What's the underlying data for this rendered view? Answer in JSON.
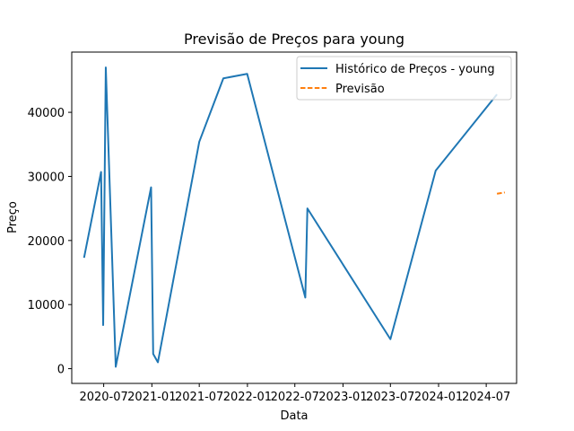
{
  "chart_data": {
    "type": "line",
    "title": "Previsão de Preços para young",
    "xlabel": "Data",
    "ylabel": "Preço",
    "x_axis_type": "date",
    "xlim": [
      "2020-03-01",
      "2024-10-25"
    ],
    "ylim": [
      -2300,
      49400
    ],
    "x_ticks": [
      {
        "date": "2020-07-01",
        "label": "2020-07"
      },
      {
        "date": "2021-01-01",
        "label": "2021-01"
      },
      {
        "date": "2021-07-01",
        "label": "2021-07"
      },
      {
        "date": "2022-01-01",
        "label": "2022-01"
      },
      {
        "date": "2022-07-01",
        "label": "2022-07"
      },
      {
        "date": "2023-01-01",
        "label": "2023-01"
      },
      {
        "date": "2023-07-01",
        "label": "2023-07"
      },
      {
        "date": "2024-01-01",
        "label": "2024-01"
      },
      {
        "date": "2024-07-01",
        "label": "2024-07"
      }
    ],
    "y_ticks": [
      {
        "value": 0,
        "label": "0"
      },
      {
        "value": 10000,
        "label": "10000"
      },
      {
        "value": 20000,
        "label": "20000"
      },
      {
        "value": 30000,
        "label": "30000"
      },
      {
        "value": 40000,
        "label": "40000"
      }
    ],
    "grid": false,
    "legend": {
      "position": "top-right"
    },
    "series": [
      {
        "name": "Histórico de Preços - young",
        "color": "#1f77b4",
        "style": "solid",
        "points": [
          {
            "x": "2020-04-17",
            "y": 17300
          },
          {
            "x": "2020-06-21",
            "y": 30700
          },
          {
            "x": "2020-06-29",
            "y": 6800
          },
          {
            "x": "2020-07-09",
            "y": 47000
          },
          {
            "x": "2020-08-16",
            "y": 300
          },
          {
            "x": "2020-12-29",
            "y": 28300
          },
          {
            "x": "2021-01-06",
            "y": 2300
          },
          {
            "x": "2021-01-24",
            "y": 1000
          },
          {
            "x": "2021-07-01",
            "y": 35400
          },
          {
            "x": "2021-10-01",
            "y": 45300
          },
          {
            "x": "2021-12-31",
            "y": 46000
          },
          {
            "x": "2022-08-10",
            "y": 11100
          },
          {
            "x": "2022-08-18",
            "y": 25000
          },
          {
            "x": "2023-07-01",
            "y": 4600
          },
          {
            "x": "2023-12-21",
            "y": 30900
          },
          {
            "x": "2024-08-11",
            "y": 42800
          }
        ]
      },
      {
        "name": "Previsão",
        "color": "#ff7f0e",
        "style": "dashed",
        "points": [
          {
            "x": "2024-08-11",
            "y": 27300
          },
          {
            "x": "2024-09-10",
            "y": 27500
          }
        ]
      }
    ]
  }
}
